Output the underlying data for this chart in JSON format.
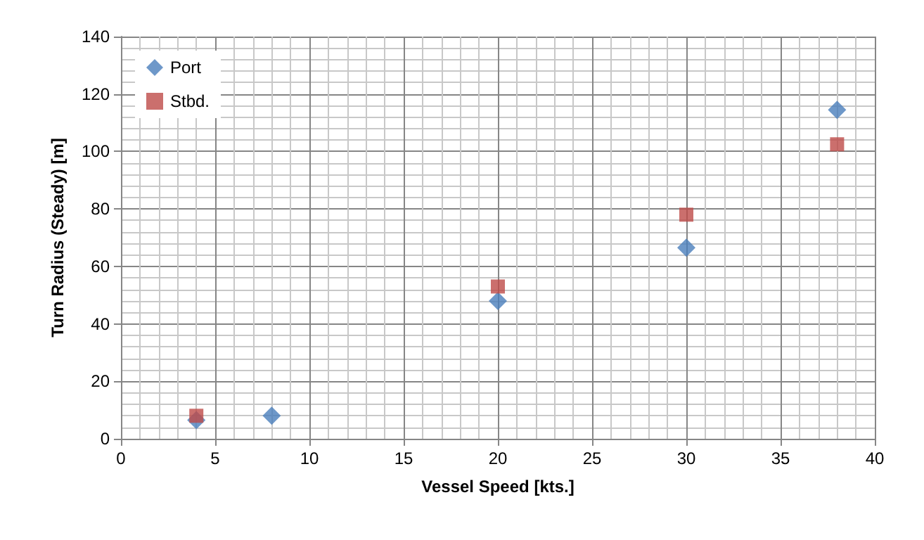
{
  "chart_data": {
    "type": "scatter",
    "xlabel": "Vessel Speed [kts.]",
    "ylabel": "Turn Radius (Steady) [m]",
    "series": [
      {
        "name": "Port",
        "color": "#4a7ebb",
        "marker": "diamond",
        "x": [
          4,
          8,
          20,
          30,
          38
        ],
        "values": [
          6.5,
          8,
          48,
          66.5,
          114.5
        ]
      },
      {
        "name": "Stbd.",
        "color": "#be4b48",
        "marker": "square",
        "x": [
          4,
          20,
          30,
          38
        ],
        "values": [
          8,
          53,
          78,
          102.5
        ]
      }
    ],
    "xlim": [
      0,
      40
    ],
    "xticks": [
      0,
      5,
      10,
      15,
      20,
      25,
      30,
      35,
      40
    ],
    "ylim": [
      0,
      140
    ],
    "yticks": [
      0,
      20,
      40,
      60,
      80,
      100,
      120,
      140
    ],
    "grid": true,
    "legend": "top left"
  }
}
